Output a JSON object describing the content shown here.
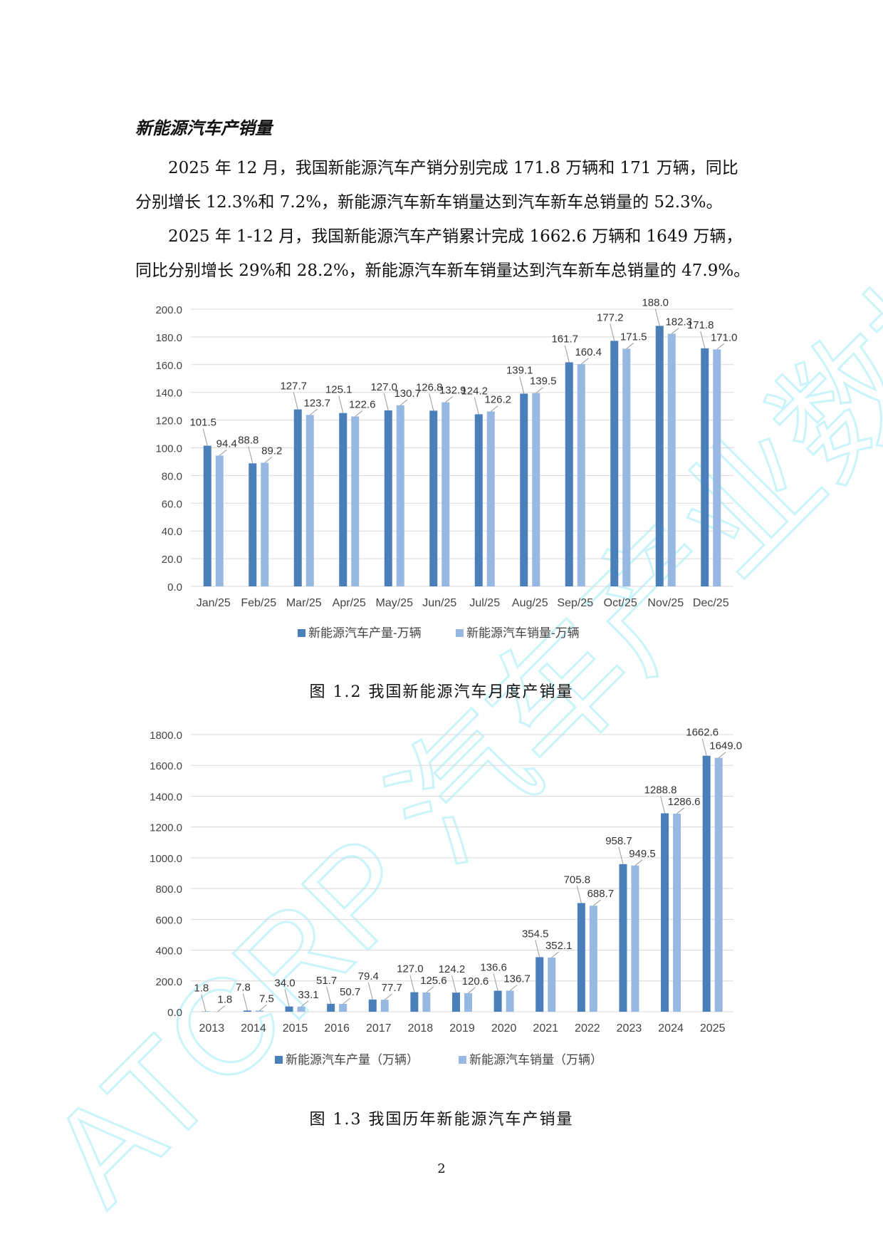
{
  "section_title": "新能源汽车产销量",
  "paragraphs": [
    {
      "line1": "2025 年 12 月，我国新能源汽车产销分别完成 171.8 万辆和 171 万辆，同比",
      "line2": "分别增长 12.3%和 7.2%，新能源汽车新车销量达到汽车新车总销量的 52.3%。"
    },
    {
      "line1": "2025 年 1-12 月，我国新能源汽车产销累计完成 1662.6 万辆和 1649 万辆，",
      "line2": "同比分别增长 29%和 28.2%，新能源汽车新车销量达到汽车新车总销量的 47.9%。"
    }
  ],
  "colors": {
    "production": "#4a7fba",
    "sales": "#97b8e0",
    "grid": "#d9d9d9",
    "watermark": "#c8f4fa"
  },
  "watermark_text": "ATCRP 汽车产业数据研究",
  "page_number": "2",
  "chart_data": [
    {
      "type": "bar",
      "caption": "图 1.2  我国新能源汽车月度产销量",
      "categories": [
        "Jan/25",
        "Feb/25",
        "Mar/25",
        "Apr/25",
        "May/25",
        "Jun/25",
        "Jul/25",
        "Aug/25",
        "Sep/25",
        "Oct/25",
        "Nov/25",
        "Dec/25"
      ],
      "series": [
        {
          "name": "新能源汽车产量-万辆",
          "values": [
            101.5,
            88.8,
            127.7,
            125.1,
            127.0,
            126.8,
            124.2,
            139.1,
            161.7,
            177.2,
            188.0,
            171.8
          ],
          "labels": [
            "101.5",
            "88.8",
            "127.7",
            "125.1",
            "127.0",
            "126.8",
            "124.2",
            "139.1",
            "161.7",
            "177.2",
            "188.0",
            "171.8"
          ]
        },
        {
          "name": "新能源汽车销量-万辆",
          "values": [
            94.4,
            89.2,
            123.7,
            122.6,
            130.7,
            132.9,
            126.2,
            139.5,
            160.4,
            171.5,
            182.3,
            171.0
          ],
          "labels": [
            "94.4",
            "89.2",
            "123.7",
            "122.6",
            "130.7",
            "132.9",
            "126.2",
            "139.5",
            "160.4",
            "171.5",
            "182.3",
            "171.0"
          ]
        }
      ],
      "ylim": [
        0,
        200
      ],
      "yticks": [
        "0.0",
        "20.0",
        "40.0",
        "60.0",
        "80.0",
        "100.0",
        "120.0",
        "140.0",
        "160.0",
        "180.0",
        "200.0"
      ],
      "grid": true,
      "legend": "bottom"
    },
    {
      "type": "bar",
      "caption": "图 1.3  我国历年新能源汽车产销量",
      "categories": [
        "2013",
        "2014",
        "2015",
        "2016",
        "2017",
        "2018",
        "2019",
        "2020",
        "2021",
        "2022",
        "2023",
        "2024",
        "2025"
      ],
      "series": [
        {
          "name": "新能源汽车产量（万辆）",
          "values": [
            1.8,
            7.8,
            34.0,
            51.7,
            79.4,
            127.0,
            124.2,
            136.6,
            354.5,
            705.8,
            958.7,
            1288.8,
            1662.6
          ],
          "labels": [
            "1.8",
            "7.8",
            "34.0",
            "51.7",
            "79.4",
            "127.0",
            "124.2",
            "136.6",
            "354.5",
            "705.8",
            "958.7",
            "1288.8",
            "1662.6"
          ]
        },
        {
          "name": "新能源汽车销量（万辆）",
          "values": [
            1.8,
            7.5,
            33.1,
            50.7,
            77.7,
            125.6,
            120.6,
            136.7,
            352.1,
            688.7,
            949.5,
            1286.6,
            1649.0
          ],
          "labels": [
            "1.8",
            "7.5",
            "33.1",
            "50.7",
            "77.7",
            "125.6",
            "120.6",
            "136.7",
            "352.1",
            "688.7",
            "949.5",
            "1286.6",
            "1649.0"
          ]
        }
      ],
      "ylim": [
        0,
        1800
      ],
      "yticks": [
        "0.0",
        "200.0",
        "400.0",
        "600.0",
        "800.0",
        "1000.0",
        "1200.0",
        "1400.0",
        "1600.0",
        "1800.0"
      ],
      "grid": true,
      "legend": "bottom"
    }
  ]
}
